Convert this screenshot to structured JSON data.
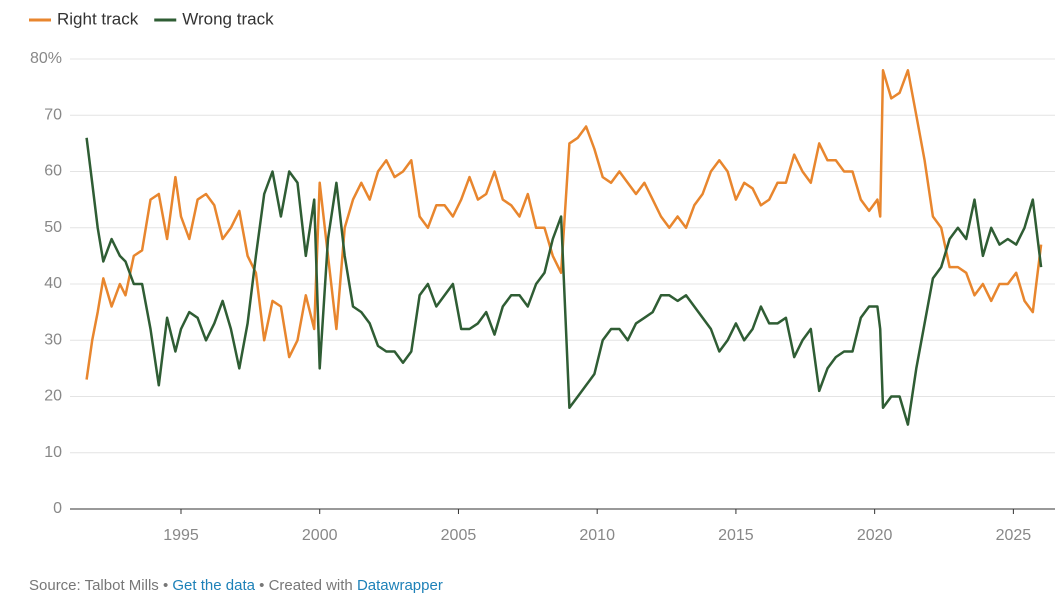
{
  "chart_data": {
    "type": "line",
    "x": [
      1991.6,
      1991.8,
      1992.0,
      1992.2,
      1992.5,
      1992.8,
      1993.0,
      1993.3,
      1993.6,
      1993.9,
      1994.2,
      1994.5,
      1994.8,
      1995.0,
      1995.3,
      1995.6,
      1995.9,
      1996.2,
      1996.5,
      1996.8,
      1997.1,
      1997.4,
      1997.7,
      1998.0,
      1998.3,
      1998.6,
      1998.9,
      1999.2,
      1999.5,
      1999.8,
      2000.0,
      2000.3,
      2000.6,
      2000.9,
      2001.2,
      2001.5,
      2001.8,
      2002.1,
      2002.4,
      2002.7,
      2003.0,
      2003.3,
      2003.6,
      2003.9,
      2004.2,
      2004.5,
      2004.8,
      2005.1,
      2005.4,
      2005.7,
      2006.0,
      2006.3,
      2006.6,
      2006.9,
      2007.2,
      2007.5,
      2007.8,
      2008.1,
      2008.4,
      2008.7,
      2009.0,
      2009.3,
      2009.6,
      2009.9,
      2010.2,
      2010.5,
      2010.8,
      2011.1,
      2011.4,
      2011.7,
      2012.0,
      2012.3,
      2012.6,
      2012.9,
      2013.2,
      2013.5,
      2013.8,
      2014.1,
      2014.4,
      2014.7,
      2015.0,
      2015.3,
      2015.6,
      2015.9,
      2016.2,
      2016.5,
      2016.8,
      2017.1,
      2017.4,
      2017.7,
      2018.0,
      2018.3,
      2018.6,
      2018.9,
      2019.2,
      2019.5,
      2019.8,
      2020.1,
      2020.2,
      2020.3,
      2020.6,
      2020.9,
      2021.2,
      2021.5,
      2021.8,
      2022.1,
      2022.4,
      2022.7,
      2023.0,
      2023.3,
      2023.6,
      2023.9,
      2024.2,
      2024.5,
      2024.8,
      2025.1,
      2025.4,
      2025.7,
      2026.0
    ],
    "series": [
      {
        "name": "Right track",
        "color": "#e8862e",
        "values": [
          23,
          30,
          35,
          41,
          36,
          40,
          38,
          45,
          46,
          55,
          56,
          48,
          59,
          52,
          48,
          55,
          56,
          54,
          48,
          50,
          53,
          45,
          42,
          30,
          37,
          36,
          27,
          30,
          38,
          32,
          58,
          45,
          32,
          50,
          55,
          58,
          55,
          60,
          62,
          59,
          60,
          62,
          52,
          50,
          54,
          54,
          52,
          55,
          59,
          55,
          56,
          60,
          55,
          54,
          52,
          56,
          50,
          50,
          45,
          42,
          65,
          66,
          68,
          64,
          59,
          58,
          60,
          58,
          56,
          58,
          55,
          52,
          50,
          52,
          50,
          54,
          56,
          60,
          62,
          60,
          55,
          58,
          57,
          54,
          55,
          58,
          58,
          63,
          60,
          58,
          65,
          62,
          62,
          60,
          60,
          55,
          53,
          55,
          52,
          78,
          73,
          74,
          78,
          70,
          62,
          52,
          50,
          43,
          43,
          42,
          38,
          40,
          37,
          40,
          40,
          42,
          37,
          35,
          47
        ]
      },
      {
        "name": "Wrong track",
        "color": "#2f5d34",
        "values": [
          66,
          58,
          50,
          44,
          48,
          45,
          44,
          40,
          40,
          32,
          22,
          34,
          28,
          32,
          35,
          34,
          30,
          33,
          37,
          32,
          25,
          33,
          45,
          56,
          60,
          52,
          60,
          58,
          45,
          55,
          25,
          48,
          58,
          45,
          36,
          35,
          33,
          29,
          28,
          28,
          26,
          28,
          38,
          40,
          36,
          38,
          40,
          32,
          32,
          33,
          35,
          31,
          36,
          38,
          38,
          36,
          40,
          42,
          48,
          52,
          18,
          20,
          22,
          24,
          30,
          32,
          32,
          30,
          33,
          34,
          35,
          38,
          38,
          37,
          38,
          36,
          34,
          32,
          28,
          30,
          33,
          30,
          32,
          36,
          33,
          33,
          34,
          27,
          30,
          32,
          21,
          25,
          27,
          28,
          28,
          34,
          36,
          36,
          32,
          18,
          20,
          20,
          15,
          25,
          33,
          41,
          43,
          48,
          50,
          48,
          55,
          45,
          50,
          47,
          48,
          47,
          50,
          55,
          43
        ]
      }
    ],
    "xlim": [
      1991,
      2026.5
    ],
    "ylim": [
      0,
      80
    ],
    "xticks": [
      1995,
      2000,
      2005,
      2010,
      2015,
      2020,
      2025
    ],
    "yticks": [
      0,
      10,
      20,
      30,
      40,
      50,
      60,
      70,
      {
        "value": 80,
        "label": "80%"
      }
    ],
    "grid": true,
    "legend": "top-left"
  },
  "footer": {
    "source": "Source: Talbot Mills",
    "separator": "•",
    "link": "Get the data",
    "created": "Created with",
    "tool": "Datawrapper"
  }
}
